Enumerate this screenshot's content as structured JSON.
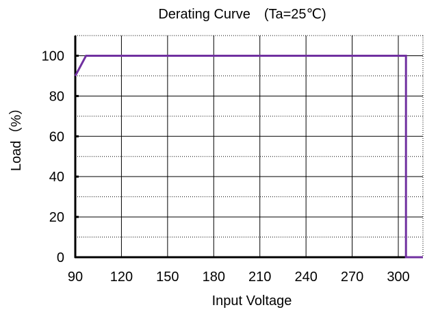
{
  "chart_data": {
    "type": "line",
    "title": "Derating Curve　(Ta=25℃)",
    "xlabel": "Input  Voltage",
    "ylabel": "Load（%）",
    "xlim": [
      90,
      318
    ],
    "ylim": [
      0,
      110
    ],
    "xticks": [
      90,
      120,
      150,
      180,
      210,
      240,
      270,
      300
    ],
    "yticks": [
      0,
      20,
      40,
      60,
      80,
      100
    ],
    "grid": true,
    "legend": "none",
    "series": [
      {
        "color": "#7030a0",
        "points": [
          [
            90,
            90
          ],
          [
            97,
            100
          ],
          [
            305,
            100
          ],
          [
            305,
            0
          ],
          [
            318,
            0
          ]
        ]
      }
    ]
  }
}
